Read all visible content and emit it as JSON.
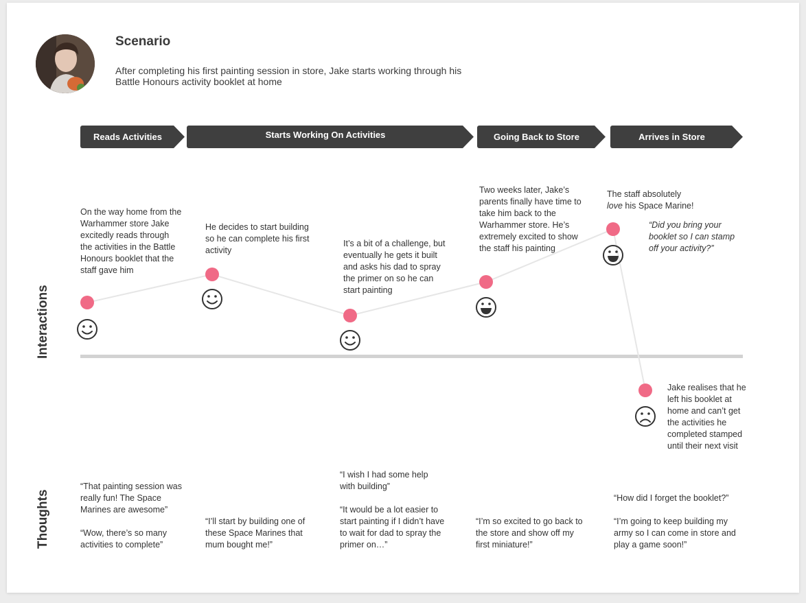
{
  "scenario": {
    "title": "Scenario",
    "text": "After completing his first painting session in store, Jake starts working through his Battle Honours activity booklet at home"
  },
  "stages": [
    "Reads Activities",
    "Starts Working On Activities",
    "Going Back to Store",
    "Arrives in Store"
  ],
  "axis_labels": {
    "interactions": "Interactions",
    "thoughts": "Thoughts"
  },
  "interactions": [
    {
      "text": "On the way home from the Warhammer store Jake excitedly reads through the activities in the Battle Honours booklet that the staff gave him",
      "emotion": "happy"
    },
    {
      "text": "He decides to start building so he can complete his first activity",
      "emotion": "happy"
    },
    {
      "text": "It’s a bit of a challenge, but eventually he gets it built and asks his dad to spray the primer on so he can start painting",
      "emotion": "happy"
    },
    {
      "text": "Two weeks later, Jake’s parents finally have time to take him back to the Warhammer store. He’s extremely excited to show the staff his painting",
      "emotion": "very-happy"
    },
    {
      "text_before": "The staff absolutely",
      "text_em": "love",
      "text_after": "his Space Marine!",
      "quote": "“Did you bring your booklet so I can stamp off your activity?”",
      "emotion": "very-happy"
    },
    {
      "text": "Jake realises that he left his booklet at home and can’t get the activities he completed stamped until their next visit",
      "emotion": "sad"
    }
  ],
  "thoughts": [
    {
      "lines": [
        "“That painting session was really fun! The Space Marines are awesome”",
        "“Wow, there’s so many activities to complete”"
      ]
    },
    {
      "lines": [
        "“I’ll start by building one of these Space Marines that mum bought me!”"
      ]
    },
    {
      "lines": [
        "“I wish I had some help with building”",
        "“It would be a lot easier to start painting if I didn’t have to wait for dad to spray the primer on…”"
      ]
    },
    {
      "lines": [
        "“I’m so excited to go back to the store and show off my first miniature!”"
      ]
    },
    {
      "lines": [
        "“How did I forget the booklet?”",
        "“I’m going to keep building my army so I can come in store and play a game soon!”"
      ]
    }
  ],
  "colors": {
    "point": "#f06a86",
    "stage_bg": "#3f3f3f",
    "line": "#e6e6e6",
    "axis": "#d2d2d2"
  }
}
